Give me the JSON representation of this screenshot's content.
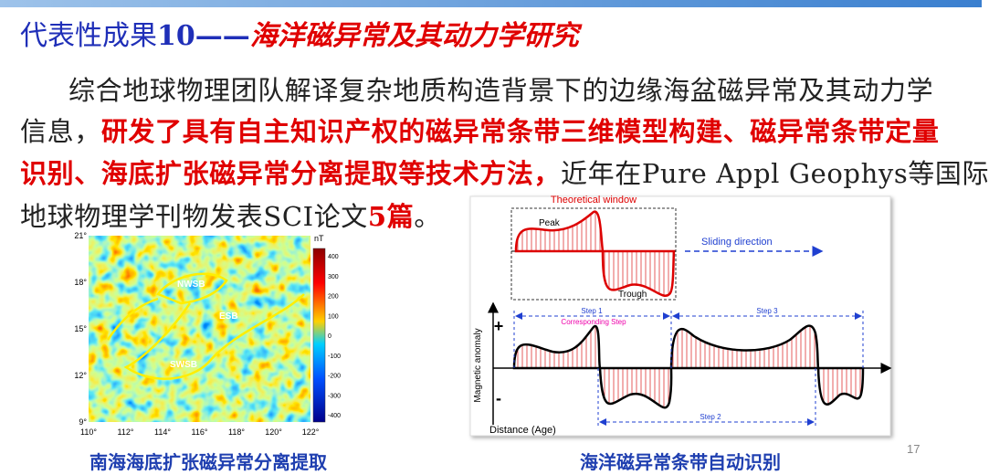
{
  "header": {
    "title_part1": "代表性成果",
    "title_part2": "10——",
    "title_emphasis": "海洋磁异常及其动力学研究"
  },
  "paragraph": {
    "lines": [
      [
        "综合地球物理团队解译复杂地质构造背景下的边缘海盆磁异常及其动力学"
      ],
      [
        "信息，",
        "研发了具有自主知识产权的磁异常条带三维模型构建、磁异常条带定量"
      ],
      [
        "识别、海底扩张磁异常分离提取等技术方法，",
        "近年在Pure Appl Geophys等国际"
      ],
      [
        "地球物理学刊物发表SCI论文",
        "5篇",
        "。"
      ]
    ]
  },
  "map": {
    "lat_labels": [
      "21°",
      "18°",
      "15°",
      "12°",
      "9°"
    ],
    "lon_labels": [
      "110°",
      "112°",
      "114°",
      "116°",
      "118°",
      "120°",
      "122°"
    ],
    "colorbar": {
      "unit": "nT",
      "ticks": [
        "400",
        "300",
        "200",
        "100",
        "0",
        "-100",
        "-200",
        "-300",
        "-400"
      ]
    },
    "regions": [
      "NWSB",
      "ESB",
      "SWSB"
    ],
    "caption": "南海海底扩张磁异常分离提取"
  },
  "diagram": {
    "window_title": "Theoretical window",
    "peak": "Peak",
    "trough": "Trough",
    "sliding": "Sliding direction",
    "step1": "Step 1",
    "corresponding": "Corresponding Step",
    "step2": "Step 2",
    "step3": "Step 3",
    "plus": "+",
    "minus": "-",
    "y_label": "Magnetic anomaly",
    "x_label": "Distance (Age)",
    "caption": "海洋磁异常条带自动识别"
  },
  "page_number": "17"
}
